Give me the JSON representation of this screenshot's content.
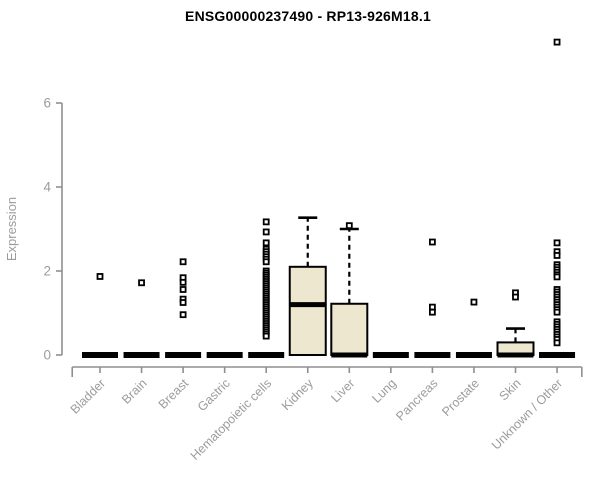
{
  "header": {
    "title": "ENSG00000237490 - RP13-926M18.1"
  },
  "colors": {
    "background": "#ffffff",
    "box_fill": "#EDE7CF",
    "box_stroke": "#000000",
    "median_stroke": "#000000",
    "outlier_stroke": "#000000",
    "outlier_fill": "#ffffff",
    "axis": "#8F8F8F",
    "tick_label": "#9C9C9C",
    "title": "#000000"
  },
  "chart_data": {
    "type": "boxplot",
    "title": "ENSG00000237490 - RP13-926M18.1",
    "xlabel": "",
    "ylabel": "Expression",
    "ylim": [
      0,
      6
    ],
    "yticks": [
      0,
      2,
      4,
      6
    ],
    "grid": false,
    "legend": "none",
    "categories": [
      "Bladder",
      "Brain",
      "Breast",
      "Gastric",
      "Hematopoietic cells",
      "Kidney",
      "Liver",
      "Lung",
      "Pancreas",
      "Prostate",
      "Skin",
      "Unknown / Other"
    ],
    "series": [
      {
        "name": "Bladder",
        "q1": 0,
        "median": 0,
        "q3": 0,
        "whisker_low": 0,
        "whisker_high": 0,
        "outliers": [
          1.87
        ]
      },
      {
        "name": "Brain",
        "q1": 0,
        "median": 0,
        "q3": 0,
        "whisker_low": 0,
        "whisker_high": 0,
        "outliers": [
          1.72
        ]
      },
      {
        "name": "Breast",
        "q1": 0,
        "median": 0,
        "q3": 0,
        "whisker_low": 0,
        "whisker_high": 0,
        "outliers": [
          2.22,
          1.84,
          1.73,
          1.56,
          1.33,
          1.25,
          0.96
        ]
      },
      {
        "name": "Gastric",
        "q1": 0,
        "median": 0,
        "q3": 0,
        "whisker_low": 0,
        "whisker_high": 0,
        "outliers": []
      },
      {
        "name": "Hematopoietic cells",
        "q1": 0,
        "median": 0,
        "q3": 0,
        "whisker_low": 0,
        "whisker_high": 0,
        "outliers": [
          3.17,
          2.93,
          2.67,
          2.52,
          2.46,
          2.4,
          2.34,
          2.28,
          2.22,
          2.0,
          1.95,
          1.9,
          1.85,
          1.8,
          1.75,
          1.7,
          1.65,
          1.6,
          1.55,
          1.5,
          1.45,
          1.4,
          1.35,
          1.3,
          1.25,
          1.2,
          1.15,
          1.1,
          1.05,
          1.0,
          0.95,
          0.9,
          0.85,
          0.8,
          0.75,
          0.7,
          0.65,
          0.6,
          0.55,
          0.5,
          0.45
        ]
      },
      {
        "name": "Kidney",
        "q1": 0,
        "median": 1.2,
        "q3": 2.1,
        "whisker_low": 0,
        "whisker_high": 3.27,
        "outliers": []
      },
      {
        "name": "Liver",
        "q1": 0,
        "median": 0,
        "q3": 1.22,
        "whisker_low": 0,
        "whisker_high": 3.0,
        "outliers": [
          3.08
        ]
      },
      {
        "name": "Lung",
        "q1": 0,
        "median": 0,
        "q3": 0,
        "whisker_low": 0,
        "whisker_high": 0,
        "outliers": []
      },
      {
        "name": "Pancreas",
        "q1": 0,
        "median": 0,
        "q3": 0,
        "whisker_low": 0,
        "whisker_high": 0,
        "outliers": [
          2.69,
          1.14,
          1.02
        ]
      },
      {
        "name": "Prostate",
        "q1": 0,
        "median": 0,
        "q3": 0,
        "whisker_low": 0,
        "whisker_high": 0,
        "outliers": [
          1.26
        ]
      },
      {
        "name": "Skin",
        "q1": 0,
        "median": 0,
        "q3": 0.3,
        "whisker_low": 0,
        "whisker_high": 0.63,
        "outliers": [
          1.48,
          1.38
        ]
      },
      {
        "name": "Unknown / Other",
        "q1": 0,
        "median": 0,
        "q3": 0,
        "whisker_low": 0,
        "whisker_high": 0,
        "outliers": [
          7.45,
          2.67,
          2.46,
          2.37,
          2.15,
          2.09,
          2.03,
          1.97,
          1.91,
          1.86,
          1.56,
          1.5,
          1.44,
          1.38,
          1.32,
          1.26,
          1.2,
          1.14,
          1.08,
          1.02,
          0.79,
          0.73,
          0.67,
          0.61,
          0.55,
          0.49,
          0.43,
          0.37,
          0.29
        ]
      }
    ]
  }
}
